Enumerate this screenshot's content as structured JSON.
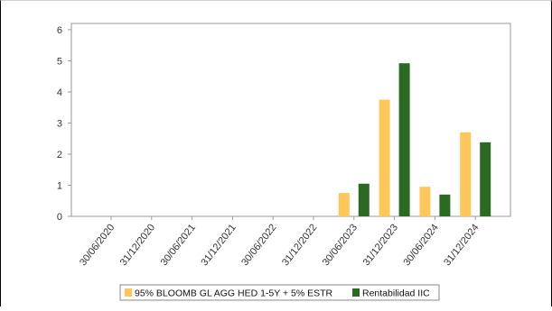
{
  "chart_data": {
    "type": "bar",
    "categories": [
      "30/06/2020",
      "31/12/2020",
      "30/06/2021",
      "31/12/2021",
      "30/06/2022",
      "31/12/2022",
      "30/06/2023",
      "31/12/2023",
      "30/06/2024",
      "31/12/2024"
    ],
    "series": [
      {
        "name": "95% BLOOMB GL AGG HED 1-5Y + 5% ESTR",
        "color": "#ffc65a",
        "values": [
          null,
          null,
          null,
          null,
          null,
          null,
          0.75,
          3.75,
          0.95,
          2.7
        ]
      },
      {
        "name": "Rentabilidad IIC",
        "color": "#2a6a22",
        "values": [
          null,
          null,
          null,
          null,
          null,
          null,
          1.05,
          4.92,
          0.7,
          2.38
        ]
      }
    ],
    "yticks": [
      "0",
      "1",
      "2",
      "3",
      "4",
      "5",
      "6"
    ],
    "ylim": [
      0,
      6.2
    ],
    "grid": false,
    "legend": "bottom"
  }
}
